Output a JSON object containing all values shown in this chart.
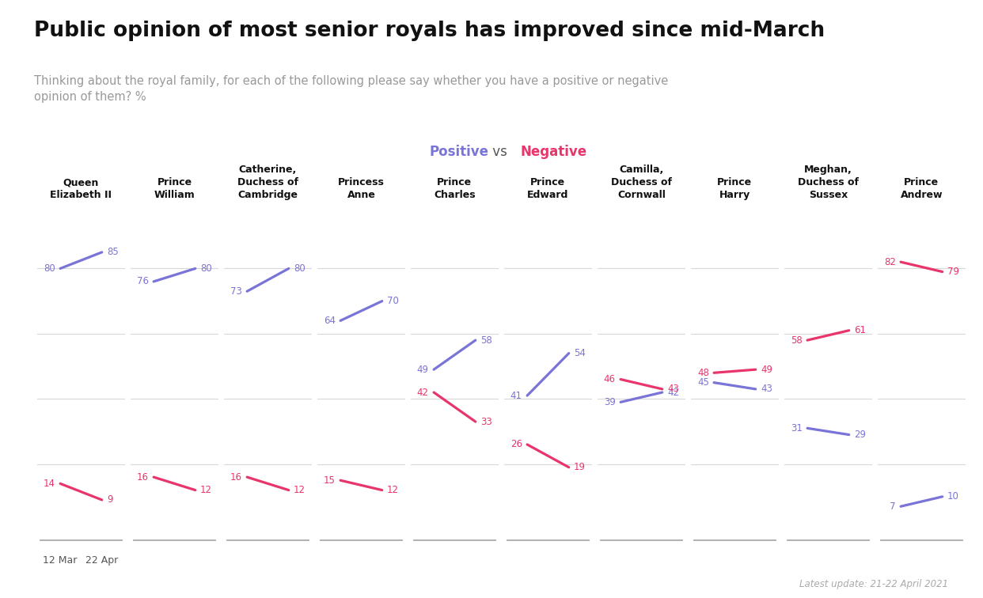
{
  "title": "Public opinion of most senior royals has improved since mid-March",
  "subtitle": "Thinking about the royal family, for each of the following please say whether you have a positive or negative\nopinion of them? %",
  "footnote": "Latest update: 21-22 April 2021",
  "date_labels": [
    "12 Mar",
    "22 Apr"
  ],
  "positive_color": "#7b74d8",
  "negative_color": "#e8356b",
  "bg_color": "#ffffff",
  "grid_color": "#d8d8d8",
  "royals": [
    {
      "name": "Queen\nElizabeth II",
      "positive": [
        80,
        85
      ],
      "negative": [
        14,
        9
      ]
    },
    {
      "name": "Prince\nWilliam",
      "positive": [
        76,
        80
      ],
      "negative": [
        16,
        12
      ]
    },
    {
      "name": "Catherine,\nDuchess of\nCambridge",
      "positive": [
        73,
        80
      ],
      "negative": [
        16,
        12
      ]
    },
    {
      "name": "Princess\nAnne",
      "positive": [
        64,
        70
      ],
      "negative": [
        15,
        12
      ]
    },
    {
      "name": "Prince\nCharles",
      "positive": [
        49,
        58
      ],
      "negative": [
        42,
        33
      ]
    },
    {
      "name": "Prince\nEdward",
      "positive": [
        41,
        54
      ],
      "negative": [
        26,
        19
      ]
    },
    {
      "name": "Camilla,\nDuchess of\nCornwall",
      "positive": [
        39,
        42
      ],
      "negative": [
        46,
        43
      ]
    },
    {
      "name": "Prince\nHarry",
      "positive": [
        45,
        43
      ],
      "negative": [
        48,
        49
      ]
    },
    {
      "name": "Meghan,\nDuchess of\nSussex",
      "positive": [
        31,
        29
      ],
      "negative": [
        58,
        61
      ]
    },
    {
      "name": "Prince\nAndrew",
      "positive": [
        7,
        10
      ],
      "negative": [
        82,
        79
      ]
    }
  ]
}
